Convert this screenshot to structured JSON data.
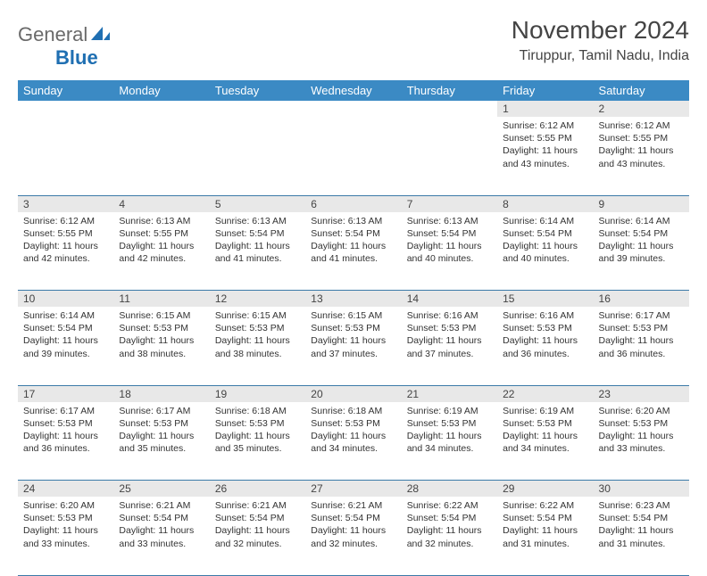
{
  "brand": {
    "part1": "General",
    "part2": "Blue"
  },
  "title": "November 2024",
  "location": "Tiruppur, Tamil Nadu, India",
  "colors": {
    "header_bg": "#3b8ac4",
    "header_text": "#ffffff",
    "daynum_bg": "#e8e8e8",
    "row_border": "#3b7aa8",
    "brand_gray": "#6a6a6a",
    "brand_blue": "#1f6fb2",
    "text": "#333333"
  },
  "day_names": [
    "Sunday",
    "Monday",
    "Tuesday",
    "Wednesday",
    "Thursday",
    "Friday",
    "Saturday"
  ],
  "weeks": [
    [
      null,
      null,
      null,
      null,
      null,
      {
        "n": "1",
        "sr": "Sunrise: 6:12 AM",
        "ss": "Sunset: 5:55 PM",
        "dl": "Daylight: 11 hours and 43 minutes."
      },
      {
        "n": "2",
        "sr": "Sunrise: 6:12 AM",
        "ss": "Sunset: 5:55 PM",
        "dl": "Daylight: 11 hours and 43 minutes."
      }
    ],
    [
      {
        "n": "3",
        "sr": "Sunrise: 6:12 AM",
        "ss": "Sunset: 5:55 PM",
        "dl": "Daylight: 11 hours and 42 minutes."
      },
      {
        "n": "4",
        "sr": "Sunrise: 6:13 AM",
        "ss": "Sunset: 5:55 PM",
        "dl": "Daylight: 11 hours and 42 minutes."
      },
      {
        "n": "5",
        "sr": "Sunrise: 6:13 AM",
        "ss": "Sunset: 5:54 PM",
        "dl": "Daylight: 11 hours and 41 minutes."
      },
      {
        "n": "6",
        "sr": "Sunrise: 6:13 AM",
        "ss": "Sunset: 5:54 PM",
        "dl": "Daylight: 11 hours and 41 minutes."
      },
      {
        "n": "7",
        "sr": "Sunrise: 6:13 AM",
        "ss": "Sunset: 5:54 PM",
        "dl": "Daylight: 11 hours and 40 minutes."
      },
      {
        "n": "8",
        "sr": "Sunrise: 6:14 AM",
        "ss": "Sunset: 5:54 PM",
        "dl": "Daylight: 11 hours and 40 minutes."
      },
      {
        "n": "9",
        "sr": "Sunrise: 6:14 AM",
        "ss": "Sunset: 5:54 PM",
        "dl": "Daylight: 11 hours and 39 minutes."
      }
    ],
    [
      {
        "n": "10",
        "sr": "Sunrise: 6:14 AM",
        "ss": "Sunset: 5:54 PM",
        "dl": "Daylight: 11 hours and 39 minutes."
      },
      {
        "n": "11",
        "sr": "Sunrise: 6:15 AM",
        "ss": "Sunset: 5:53 PM",
        "dl": "Daylight: 11 hours and 38 minutes."
      },
      {
        "n": "12",
        "sr": "Sunrise: 6:15 AM",
        "ss": "Sunset: 5:53 PM",
        "dl": "Daylight: 11 hours and 38 minutes."
      },
      {
        "n": "13",
        "sr": "Sunrise: 6:15 AM",
        "ss": "Sunset: 5:53 PM",
        "dl": "Daylight: 11 hours and 37 minutes."
      },
      {
        "n": "14",
        "sr": "Sunrise: 6:16 AM",
        "ss": "Sunset: 5:53 PM",
        "dl": "Daylight: 11 hours and 37 minutes."
      },
      {
        "n": "15",
        "sr": "Sunrise: 6:16 AM",
        "ss": "Sunset: 5:53 PM",
        "dl": "Daylight: 11 hours and 36 minutes."
      },
      {
        "n": "16",
        "sr": "Sunrise: 6:17 AM",
        "ss": "Sunset: 5:53 PM",
        "dl": "Daylight: 11 hours and 36 minutes."
      }
    ],
    [
      {
        "n": "17",
        "sr": "Sunrise: 6:17 AM",
        "ss": "Sunset: 5:53 PM",
        "dl": "Daylight: 11 hours and 36 minutes."
      },
      {
        "n": "18",
        "sr": "Sunrise: 6:17 AM",
        "ss": "Sunset: 5:53 PM",
        "dl": "Daylight: 11 hours and 35 minutes."
      },
      {
        "n": "19",
        "sr": "Sunrise: 6:18 AM",
        "ss": "Sunset: 5:53 PM",
        "dl": "Daylight: 11 hours and 35 minutes."
      },
      {
        "n": "20",
        "sr": "Sunrise: 6:18 AM",
        "ss": "Sunset: 5:53 PM",
        "dl": "Daylight: 11 hours and 34 minutes."
      },
      {
        "n": "21",
        "sr": "Sunrise: 6:19 AM",
        "ss": "Sunset: 5:53 PM",
        "dl": "Daylight: 11 hours and 34 minutes."
      },
      {
        "n": "22",
        "sr": "Sunrise: 6:19 AM",
        "ss": "Sunset: 5:53 PM",
        "dl": "Daylight: 11 hours and 34 minutes."
      },
      {
        "n": "23",
        "sr": "Sunrise: 6:20 AM",
        "ss": "Sunset: 5:53 PM",
        "dl": "Daylight: 11 hours and 33 minutes."
      }
    ],
    [
      {
        "n": "24",
        "sr": "Sunrise: 6:20 AM",
        "ss": "Sunset: 5:53 PM",
        "dl": "Daylight: 11 hours and 33 minutes."
      },
      {
        "n": "25",
        "sr": "Sunrise: 6:21 AM",
        "ss": "Sunset: 5:54 PM",
        "dl": "Daylight: 11 hours and 33 minutes."
      },
      {
        "n": "26",
        "sr": "Sunrise: 6:21 AM",
        "ss": "Sunset: 5:54 PM",
        "dl": "Daylight: 11 hours and 32 minutes."
      },
      {
        "n": "27",
        "sr": "Sunrise: 6:21 AM",
        "ss": "Sunset: 5:54 PM",
        "dl": "Daylight: 11 hours and 32 minutes."
      },
      {
        "n": "28",
        "sr": "Sunrise: 6:22 AM",
        "ss": "Sunset: 5:54 PM",
        "dl": "Daylight: 11 hours and 32 minutes."
      },
      {
        "n": "29",
        "sr": "Sunrise: 6:22 AM",
        "ss": "Sunset: 5:54 PM",
        "dl": "Daylight: 11 hours and 31 minutes."
      },
      {
        "n": "30",
        "sr": "Sunrise: 6:23 AM",
        "ss": "Sunset: 5:54 PM",
        "dl": "Daylight: 11 hours and 31 minutes."
      }
    ]
  ]
}
